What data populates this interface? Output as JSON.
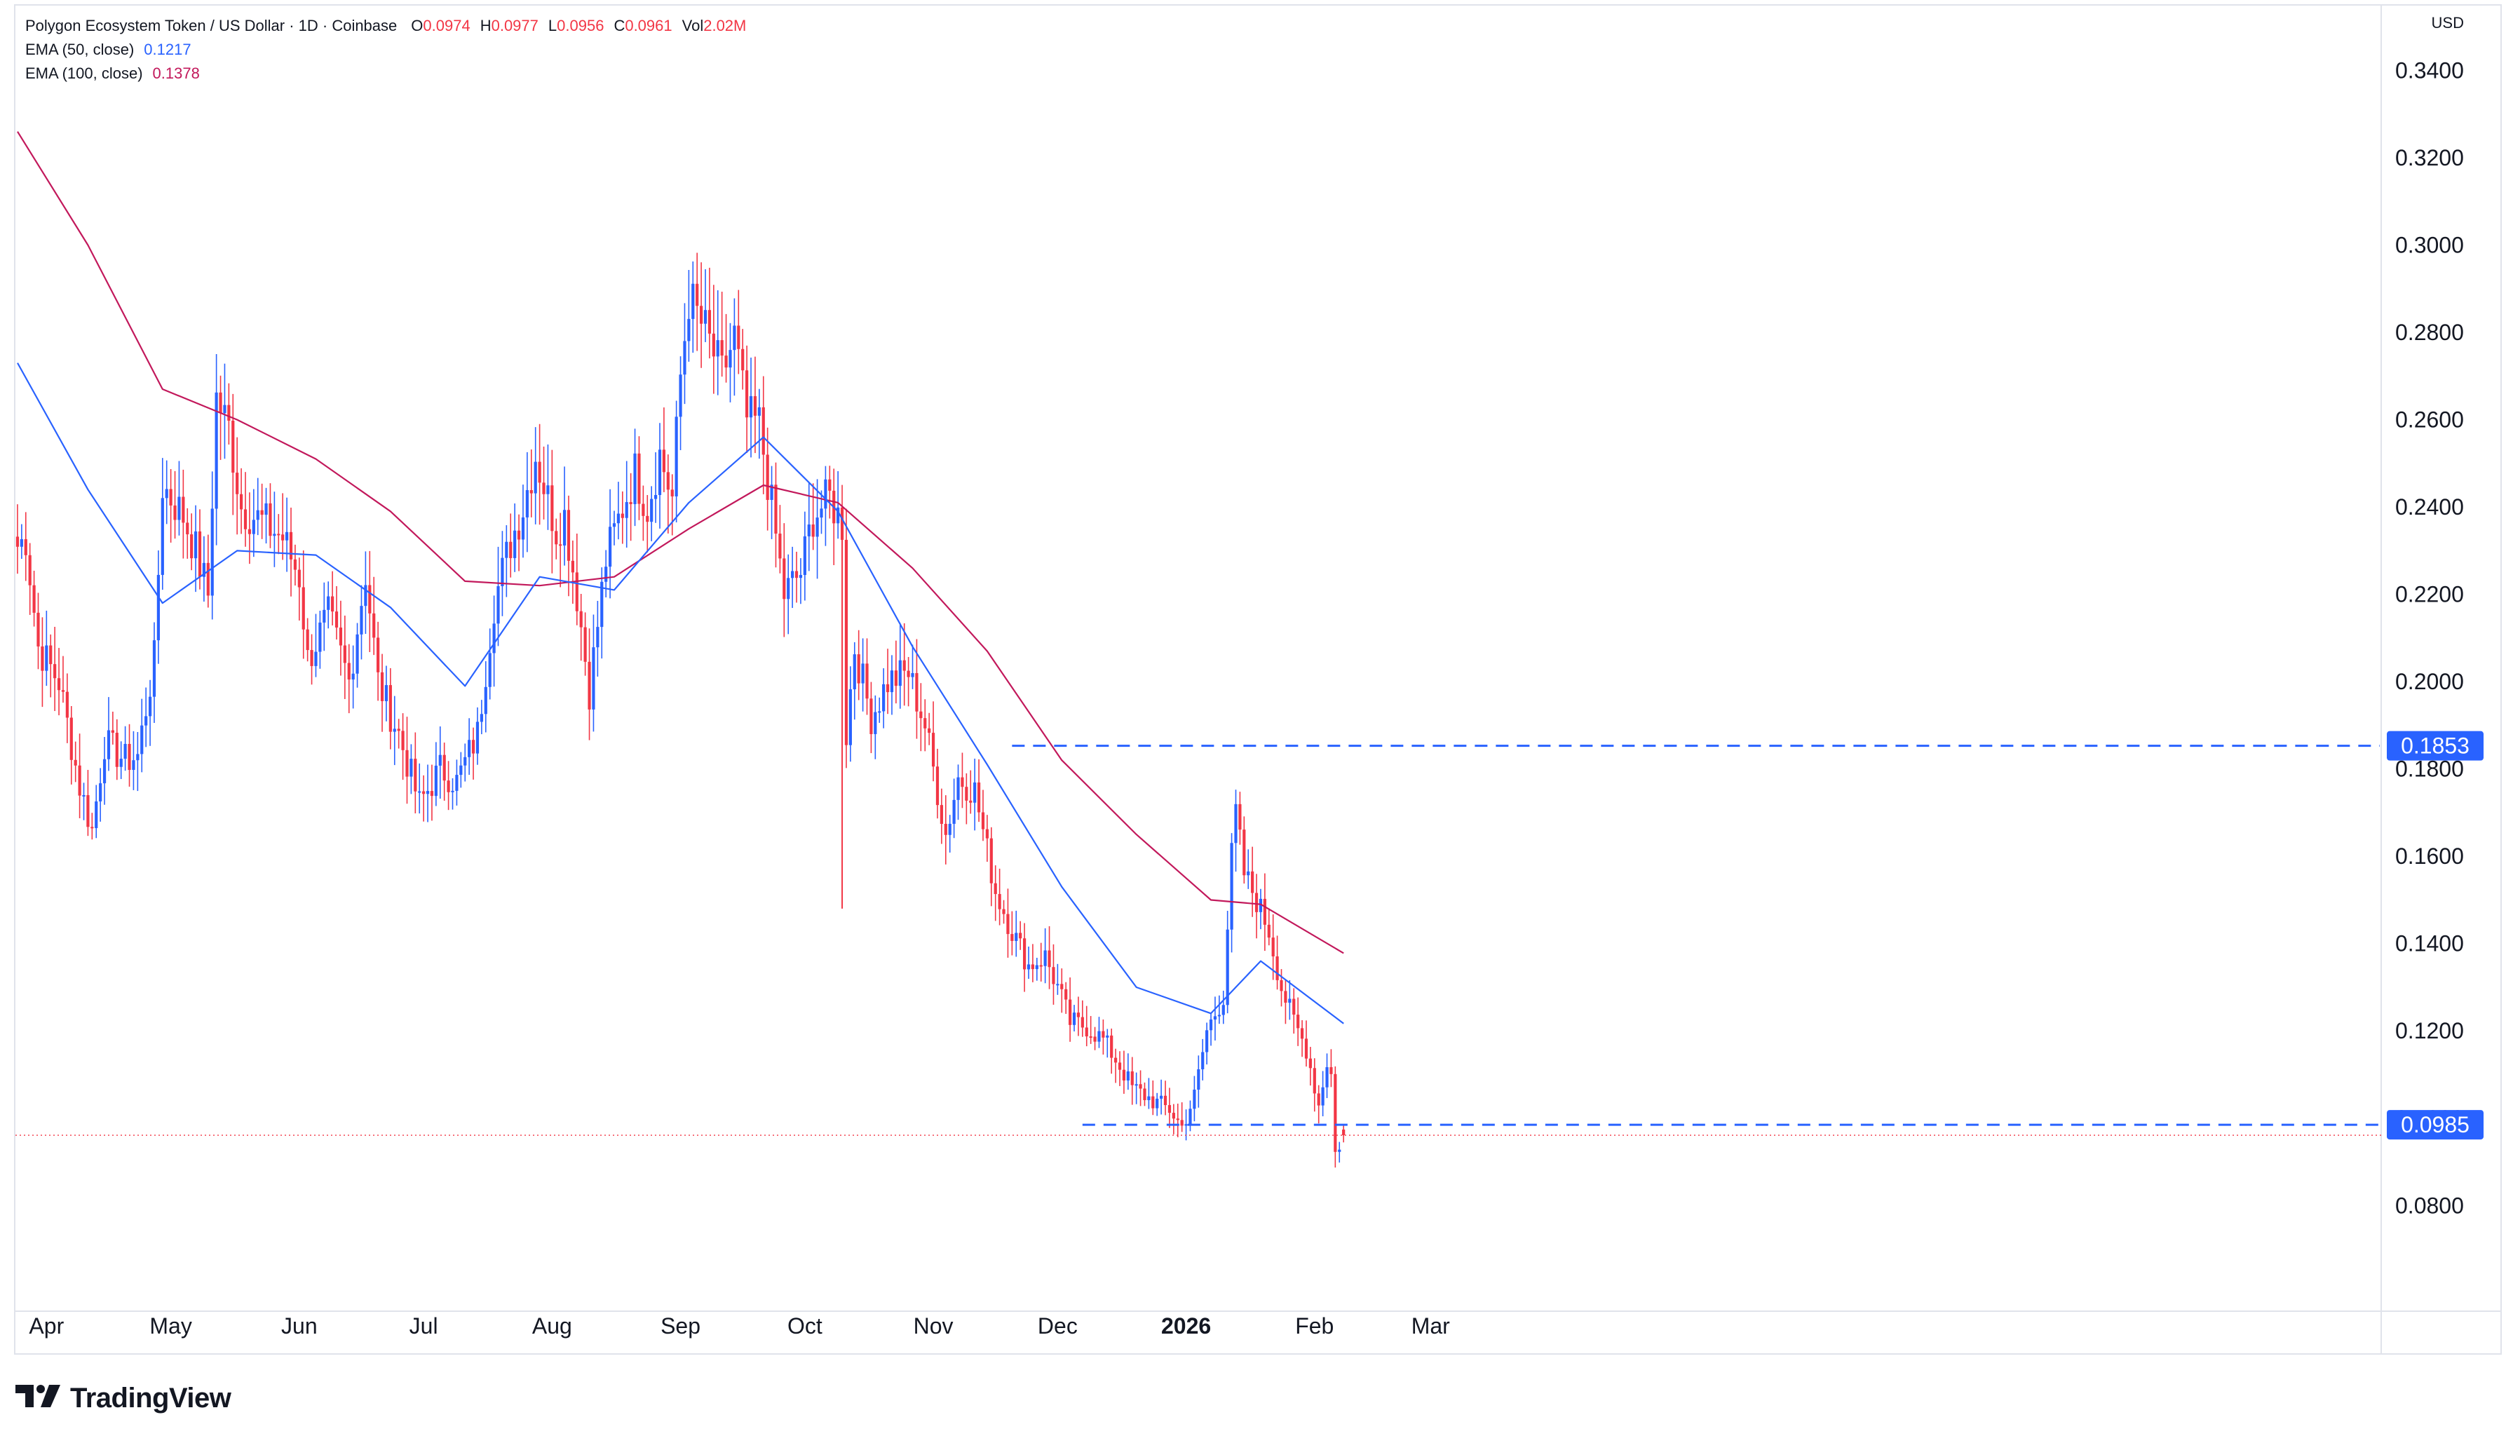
{
  "header": {
    "symbol_title": "Polygon Ecosystem Token / US Dollar · 1D · Coinbase",
    "ohlc": [
      {
        "key": "O",
        "value": "0.0974"
      },
      {
        "key": "H",
        "value": "0.0977"
      },
      {
        "key": "L",
        "value": "0.0956"
      },
      {
        "key": "C",
        "value": "0.0961"
      },
      {
        "key": "Vol",
        "value": "2.02M"
      }
    ],
    "ema50_label": "EMA (50, close)",
    "ema50_value": "0.1217",
    "ema100_label": "EMA (100, close)",
    "ema100_value": "0.1378",
    "currency": "USD"
  },
  "branding": {
    "logo_text": "TradingView"
  },
  "colors": {
    "up": "#2962ff",
    "down": "#f23645",
    "ema50": "#2962ff",
    "ema100": "#c2185b",
    "level_line": "#2962ff",
    "price_line": "#f23645"
  },
  "chart_data": {
    "type": "candlestick",
    "title": "Polygon Ecosystem Token / US Dollar · 1D · Coinbase",
    "y_axis_ticks": [
      "0.3400",
      "0.3200",
      "0.3000",
      "0.2800",
      "0.2600",
      "0.2400",
      "0.2200",
      "0.2000",
      "0.1800",
      "0.1600",
      "0.1400",
      "0.1200",
      "0.1000",
      "0.0800"
    ],
    "ylim": [
      0.068,
      0.351
    ],
    "x_axis_ticks": [
      {
        "label": "Apr",
        "date": "2025-04-01",
        "bold": false
      },
      {
        "label": "May",
        "date": "2025-05-01",
        "bold": false
      },
      {
        "label": "Jun",
        "date": "2025-06-01",
        "bold": false
      },
      {
        "label": "Jul",
        "date": "2025-07-01",
        "bold": false
      },
      {
        "label": "Aug",
        "date": "2025-08-01",
        "bold": false
      },
      {
        "label": "Sep",
        "date": "2025-09-01",
        "bold": false
      },
      {
        "label": "Oct",
        "date": "2025-10-01",
        "bold": false
      },
      {
        "label": "Nov",
        "date": "2025-11-01",
        "bold": false
      },
      {
        "label": "Dec",
        "date": "2025-12-01",
        "bold": false
      },
      {
        "label": "2026",
        "date": "2026-01-01",
        "bold": true
      },
      {
        "label": "Feb",
        "date": "2026-02-01",
        "bold": false
      },
      {
        "label": "Mar",
        "date": "2026-03-01",
        "bold": false
      }
    ],
    "start_date": "2025-03-25",
    "end_date": "2026-02-08",
    "anchors": [
      {
        "date": "2025-03-25",
        "price": 0.231
      },
      {
        "date": "2025-03-27",
        "price": 0.233
      },
      {
        "date": "2025-03-30",
        "price": 0.208
      },
      {
        "date": "2025-04-04",
        "price": 0.2
      },
      {
        "date": "2025-04-09",
        "price": 0.176
      },
      {
        "date": "2025-04-12",
        "price": 0.166
      },
      {
        "date": "2025-04-15",
        "price": 0.186
      },
      {
        "date": "2025-04-20",
        "price": 0.182
      },
      {
        "date": "2025-04-23",
        "price": 0.183
      },
      {
        "date": "2025-04-27",
        "price": 0.205
      },
      {
        "date": "2025-04-29",
        "price": 0.245
      },
      {
        "date": "2025-05-04",
        "price": 0.238
      },
      {
        "date": "2025-05-07",
        "price": 0.23
      },
      {
        "date": "2025-05-10",
        "price": 0.22
      },
      {
        "date": "2025-05-12",
        "price": 0.265
      },
      {
        "date": "2025-05-15",
        "price": 0.258
      },
      {
        "date": "2025-05-18",
        "price": 0.24
      },
      {
        "date": "2025-05-24",
        "price": 0.236
      },
      {
        "date": "2025-05-28",
        "price": 0.233
      },
      {
        "date": "2025-06-01",
        "price": 0.224
      },
      {
        "date": "2025-06-03",
        "price": 0.205
      },
      {
        "date": "2025-06-08",
        "price": 0.215
      },
      {
        "date": "2025-06-13",
        "price": 0.2
      },
      {
        "date": "2025-06-17",
        "price": 0.225
      },
      {
        "date": "2025-06-20",
        "price": 0.2
      },
      {
        "date": "2025-06-25",
        "price": 0.188
      },
      {
        "date": "2025-06-30",
        "price": 0.172
      },
      {
        "date": "2025-07-05",
        "price": 0.18
      },
      {
        "date": "2025-07-09",
        "price": 0.177
      },
      {
        "date": "2025-07-14",
        "price": 0.188
      },
      {
        "date": "2025-07-18",
        "price": 0.218
      },
      {
        "date": "2025-07-22",
        "price": 0.232
      },
      {
        "date": "2025-07-25",
        "price": 0.24
      },
      {
        "date": "2025-07-28",
        "price": 0.252
      },
      {
        "date": "2025-08-02",
        "price": 0.235
      },
      {
        "date": "2025-08-04",
        "price": 0.238
      },
      {
        "date": "2025-08-07",
        "price": 0.22
      },
      {
        "date": "2025-08-10",
        "price": 0.198
      },
      {
        "date": "2025-08-14",
        "price": 0.228
      },
      {
        "date": "2025-08-18",
        "price": 0.24
      },
      {
        "date": "2025-08-21",
        "price": 0.248
      },
      {
        "date": "2025-08-24",
        "price": 0.24
      },
      {
        "date": "2025-08-27",
        "price": 0.252
      },
      {
        "date": "2025-08-30",
        "price": 0.242
      },
      {
        "date": "2025-09-01",
        "price": 0.27
      },
      {
        "date": "2025-09-03",
        "price": 0.288
      },
      {
        "date": "2025-09-07",
        "price": 0.28
      },
      {
        "date": "2025-09-11",
        "price": 0.27
      },
      {
        "date": "2025-09-14",
        "price": 0.279
      },
      {
        "date": "2025-09-17",
        "price": 0.26
      },
      {
        "date": "2025-09-20",
        "price": 0.259
      },
      {
        "date": "2025-09-23",
        "price": 0.24
      },
      {
        "date": "2025-09-26",
        "price": 0.22
      },
      {
        "date": "2025-09-30",
        "price": 0.225
      },
      {
        "date": "2025-10-03",
        "price": 0.238
      },
      {
        "date": "2025-10-07",
        "price": 0.242
      },
      {
        "date": "2025-10-10",
        "price": 0.236
      },
      {
        "date": "2025-10-11",
        "price": 0.188
      },
      {
        "date": "2025-10-13",
        "price": 0.208
      },
      {
        "date": "2025-10-17",
        "price": 0.192
      },
      {
        "date": "2025-10-21",
        "price": 0.2
      },
      {
        "date": "2025-10-26",
        "price": 0.202
      },
      {
        "date": "2025-10-30",
        "price": 0.19
      },
      {
        "date": "2025-11-04",
        "price": 0.165
      },
      {
        "date": "2025-11-07",
        "price": 0.178
      },
      {
        "date": "2025-11-11",
        "price": 0.175
      },
      {
        "date": "2025-11-16",
        "price": 0.152
      },
      {
        "date": "2025-11-20",
        "price": 0.143
      },
      {
        "date": "2025-11-24",
        "price": 0.135
      },
      {
        "date": "2025-11-28",
        "price": 0.137
      },
      {
        "date": "2025-12-01",
        "price": 0.13
      },
      {
        "date": "2025-12-04",
        "price": 0.122
      },
      {
        "date": "2025-12-08",
        "price": 0.121
      },
      {
        "date": "2025-12-12",
        "price": 0.118
      },
      {
        "date": "2025-12-16",
        "price": 0.112
      },
      {
        "date": "2025-12-19",
        "price": 0.107
      },
      {
        "date": "2025-12-24",
        "price": 0.104
      },
      {
        "date": "2025-12-28",
        "price": 0.102
      },
      {
        "date": "2025-12-31",
        "price": 0.098
      },
      {
        "date": "2026-01-03",
        "price": 0.105
      },
      {
        "date": "2026-01-06",
        "price": 0.12
      },
      {
        "date": "2026-01-10",
        "price": 0.128
      },
      {
        "date": "2026-01-12",
        "price": 0.16
      },
      {
        "date": "2026-01-13",
        "price": 0.17
      },
      {
        "date": "2026-01-15",
        "price": 0.156
      },
      {
        "date": "2026-01-18",
        "price": 0.15
      },
      {
        "date": "2026-01-21",
        "price": 0.143
      },
      {
        "date": "2026-01-24",
        "price": 0.13
      },
      {
        "date": "2026-01-27",
        "price": 0.122
      },
      {
        "date": "2026-01-30",
        "price": 0.116
      },
      {
        "date": "2026-02-02",
        "price": 0.103
      },
      {
        "date": "2026-02-04",
        "price": 0.113
      },
      {
        "date": "2026-02-05",
        "price": 0.11
      },
      {
        "date": "2026-02-06",
        "price": 0.092
      },
      {
        "date": "2026-02-08",
        "price": 0.096
      }
    ],
    "ema50": [
      {
        "date": "2025-03-25",
        "value": 0.273
      },
      {
        "date": "2025-04-11",
        "value": 0.244
      },
      {
        "date": "2025-04-29",
        "value": 0.218
      },
      {
        "date": "2025-05-17",
        "value": 0.23
      },
      {
        "date": "2025-06-05",
        "value": 0.229
      },
      {
        "date": "2025-06-23",
        "value": 0.217
      },
      {
        "date": "2025-07-11",
        "value": 0.199
      },
      {
        "date": "2025-07-29",
        "value": 0.224
      },
      {
        "date": "2025-08-16",
        "value": 0.221
      },
      {
        "date": "2025-09-03",
        "value": 0.241
      },
      {
        "date": "2025-09-21",
        "value": 0.256
      },
      {
        "date": "2025-10-09",
        "value": 0.239
      },
      {
        "date": "2025-10-27",
        "value": 0.208
      },
      {
        "date": "2025-11-14",
        "value": 0.181
      },
      {
        "date": "2025-12-02",
        "value": 0.153
      },
      {
        "date": "2025-12-20",
        "value": 0.13
      },
      {
        "date": "2026-01-07",
        "value": 0.124
      },
      {
        "date": "2026-01-19",
        "value": 0.136
      },
      {
        "date": "2026-02-08",
        "value": 0.1217
      }
    ],
    "ema100": [
      {
        "date": "2025-03-25",
        "value": 0.326
      },
      {
        "date": "2025-04-11",
        "value": 0.3
      },
      {
        "date": "2025-04-29",
        "value": 0.267
      },
      {
        "date": "2025-05-17",
        "value": 0.26
      },
      {
        "date": "2025-06-05",
        "value": 0.251
      },
      {
        "date": "2025-06-23",
        "value": 0.239
      },
      {
        "date": "2025-07-11",
        "value": 0.223
      },
      {
        "date": "2025-07-29",
        "value": 0.222
      },
      {
        "date": "2025-08-16",
        "value": 0.224
      },
      {
        "date": "2025-09-03",
        "value": 0.235
      },
      {
        "date": "2025-09-21",
        "value": 0.245
      },
      {
        "date": "2025-10-09",
        "value": 0.241
      },
      {
        "date": "2025-10-27",
        "value": 0.226
      },
      {
        "date": "2025-11-14",
        "value": 0.207
      },
      {
        "date": "2025-12-02",
        "value": 0.182
      },
      {
        "date": "2025-12-20",
        "value": 0.165
      },
      {
        "date": "2026-01-07",
        "value": 0.15
      },
      {
        "date": "2026-01-19",
        "value": 0.149
      },
      {
        "date": "2026-02-08",
        "value": 0.1378
      }
    ],
    "horizontal_levels": [
      {
        "value": 0.1853,
        "label": "0.1853",
        "from_date": "2025-11-20",
        "style": "dashed"
      },
      {
        "value": 0.0985,
        "label": "0.0985",
        "from_date": "2025-12-07",
        "style": "dashed"
      }
    ],
    "last_price": 0.0961
  }
}
